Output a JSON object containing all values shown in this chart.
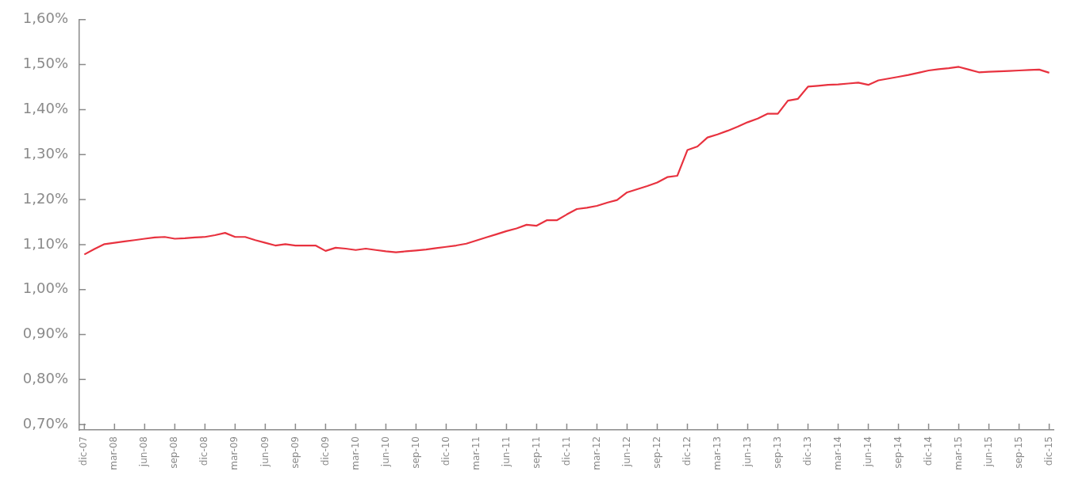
{
  "chart_data": {
    "type": "line",
    "categories": [
      "dic-07",
      null,
      null,
      "mar-08",
      null,
      null,
      "jun-08",
      null,
      null,
      "sep-08",
      null,
      null,
      "dic-08",
      null,
      null,
      "mar-09",
      null,
      null,
      "jun-09",
      null,
      null,
      "sep-09",
      null,
      null,
      "dic-09",
      null,
      null,
      "mar-10",
      null,
      null,
      "jun-10",
      null,
      null,
      "sep-10",
      null,
      null,
      "dic-10",
      null,
      null,
      "mar-11",
      null,
      null,
      "jun-11",
      null,
      null,
      "sep-11",
      null,
      null,
      "dic-11",
      null,
      null,
      "mar-12",
      null,
      null,
      "jun-12",
      null,
      null,
      "sep-12",
      null,
      null,
      "dic-12",
      null,
      null,
      "mar-13",
      null,
      null,
      "jun-13",
      null,
      null,
      "sep-13",
      null,
      null,
      "dic-13",
      null,
      null,
      "mar-14",
      null,
      null,
      "jun-14",
      null,
      null,
      "sep-14",
      null,
      null,
      "dic-14",
      null,
      null,
      "mar-15",
      null,
      null,
      "jun-15",
      null,
      null,
      "sep-15",
      null,
      null,
      "dic-15"
    ],
    "series": [
      {
        "color": "#e8323f",
        "values": [
          1.078,
          1.09,
          1.101,
          1.104,
          1.107,
          1.11,
          1.113,
          1.116,
          1.117,
          1.113,
          1.114,
          1.116,
          1.117,
          1.121,
          1.126,
          1.117,
          1.117,
          1.11,
          1.104,
          1.098,
          1.101,
          1.098,
          1.098,
          1.098,
          1.086,
          1.093,
          1.091,
          1.088,
          1.091,
          1.088,
          1.085,
          1.083,
          1.085,
          1.087,
          1.089,
          1.092,
          1.095,
          1.098,
          1.102,
          1.109,
          1.116,
          1.123,
          1.13,
          1.136,
          1.144,
          1.142,
          1.154,
          1.154,
          1.167,
          1.179,
          1.182,
          1.186,
          1.193,
          1.199,
          1.216,
          1.223,
          1.23,
          1.238,
          1.25,
          1.253,
          1.31,
          1.318,
          1.338,
          1.345,
          1.353,
          1.362,
          1.372,
          1.38,
          1.391,
          1.391,
          1.42,
          1.424,
          1.451,
          1.453,
          1.455,
          1.456,
          1.458,
          1.46,
          1.455,
          1.465,
          1.469,
          1.473,
          1.477,
          1.482,
          1.487,
          1.49,
          1.492,
          1.495,
          1.489,
          1.483,
          1.484,
          1.485,
          1.486,
          1.487,
          1.488,
          1.489,
          1.482
        ]
      }
    ],
    "ylim": [
      0.688,
      1.6
    ],
    "yticks": [
      {
        "value": 0.7,
        "label": "0,70%"
      },
      {
        "value": 0.8,
        "label": "0,80%"
      },
      {
        "value": 0.9,
        "label": "0,90%"
      },
      {
        "value": 1.0,
        "label": "1,00%"
      },
      {
        "value": 1.1,
        "label": "1,10%"
      },
      {
        "value": 1.2,
        "label": "1,20%"
      },
      {
        "value": 1.3,
        "label": "1,30%"
      },
      {
        "value": 1.4,
        "label": "1,40%"
      },
      {
        "value": 1.5,
        "label": "1,50%"
      },
      {
        "value": 1.6,
        "label": "1,60%"
      }
    ],
    "grid": false,
    "legend": false,
    "marker": "none",
    "line_style": "solid"
  }
}
